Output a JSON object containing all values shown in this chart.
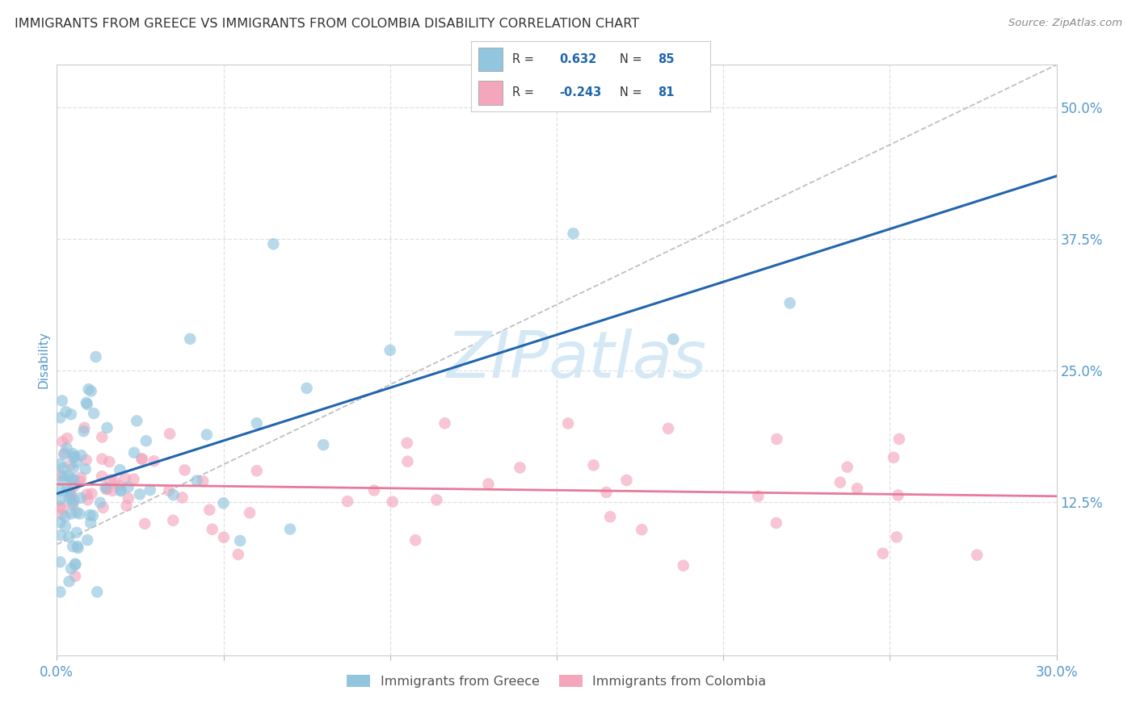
{
  "title": "IMMIGRANTS FROM GREECE VS IMMIGRANTS FROM COLOMBIA DISABILITY CORRELATION CHART",
  "source": "Source: ZipAtlas.com",
  "ylabel": "Disability",
  "xlim": [
    0.0,
    0.3
  ],
  "ylim": [
    -0.02,
    0.54
  ],
  "yticks_right": [
    0.125,
    0.25,
    0.375,
    0.5
  ],
  "ytick_right_labels": [
    "12.5%",
    "25.0%",
    "37.5%",
    "50.0%"
  ],
  "greece_R": 0.632,
  "greece_N": 85,
  "colombia_R": -0.243,
  "colombia_N": 81,
  "greece_color": "#92c5de",
  "colombia_color": "#f4a6bd",
  "greece_line_color": "#2166ac",
  "colombia_line_color": "#e8799a",
  "ref_line_color": "#aaaaaa",
  "title_color": "#333333",
  "source_color": "#888888",
  "tick_color": "#5599cc",
  "watermark_color": "#d5e8f5",
  "background_color": "#ffffff",
  "grid_color": "#e0e0e0",
  "figsize": [
    14.06,
    8.92
  ],
  "dpi": 100
}
